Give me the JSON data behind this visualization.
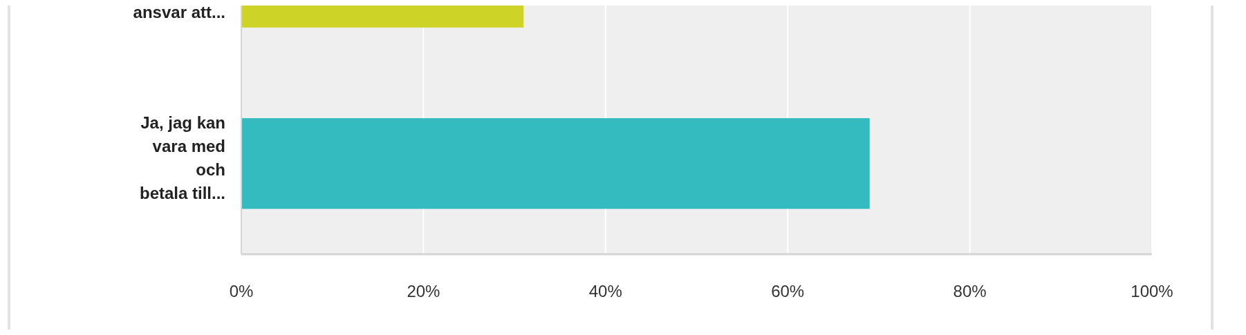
{
  "chart_data": {
    "type": "bar",
    "orientation": "horizontal",
    "categories": [
      "ansvar att...",
      "Ja, jag kan\nvara med\noch\nbetala till..."
    ],
    "values": [
      31,
      69
    ],
    "colors": [
      "#cdd427",
      "#33bbbf"
    ],
    "xlim": [
      0,
      100
    ],
    "xticks": [
      {
        "value": 0,
        "label": "0%"
      },
      {
        "value": 20,
        "label": "20%"
      },
      {
        "value": 40,
        "label": "40%"
      },
      {
        "value": 60,
        "label": "60%"
      },
      {
        "value": 80,
        "label": "80%"
      },
      {
        "value": 100,
        "label": "100%"
      }
    ],
    "grid": "x"
  }
}
